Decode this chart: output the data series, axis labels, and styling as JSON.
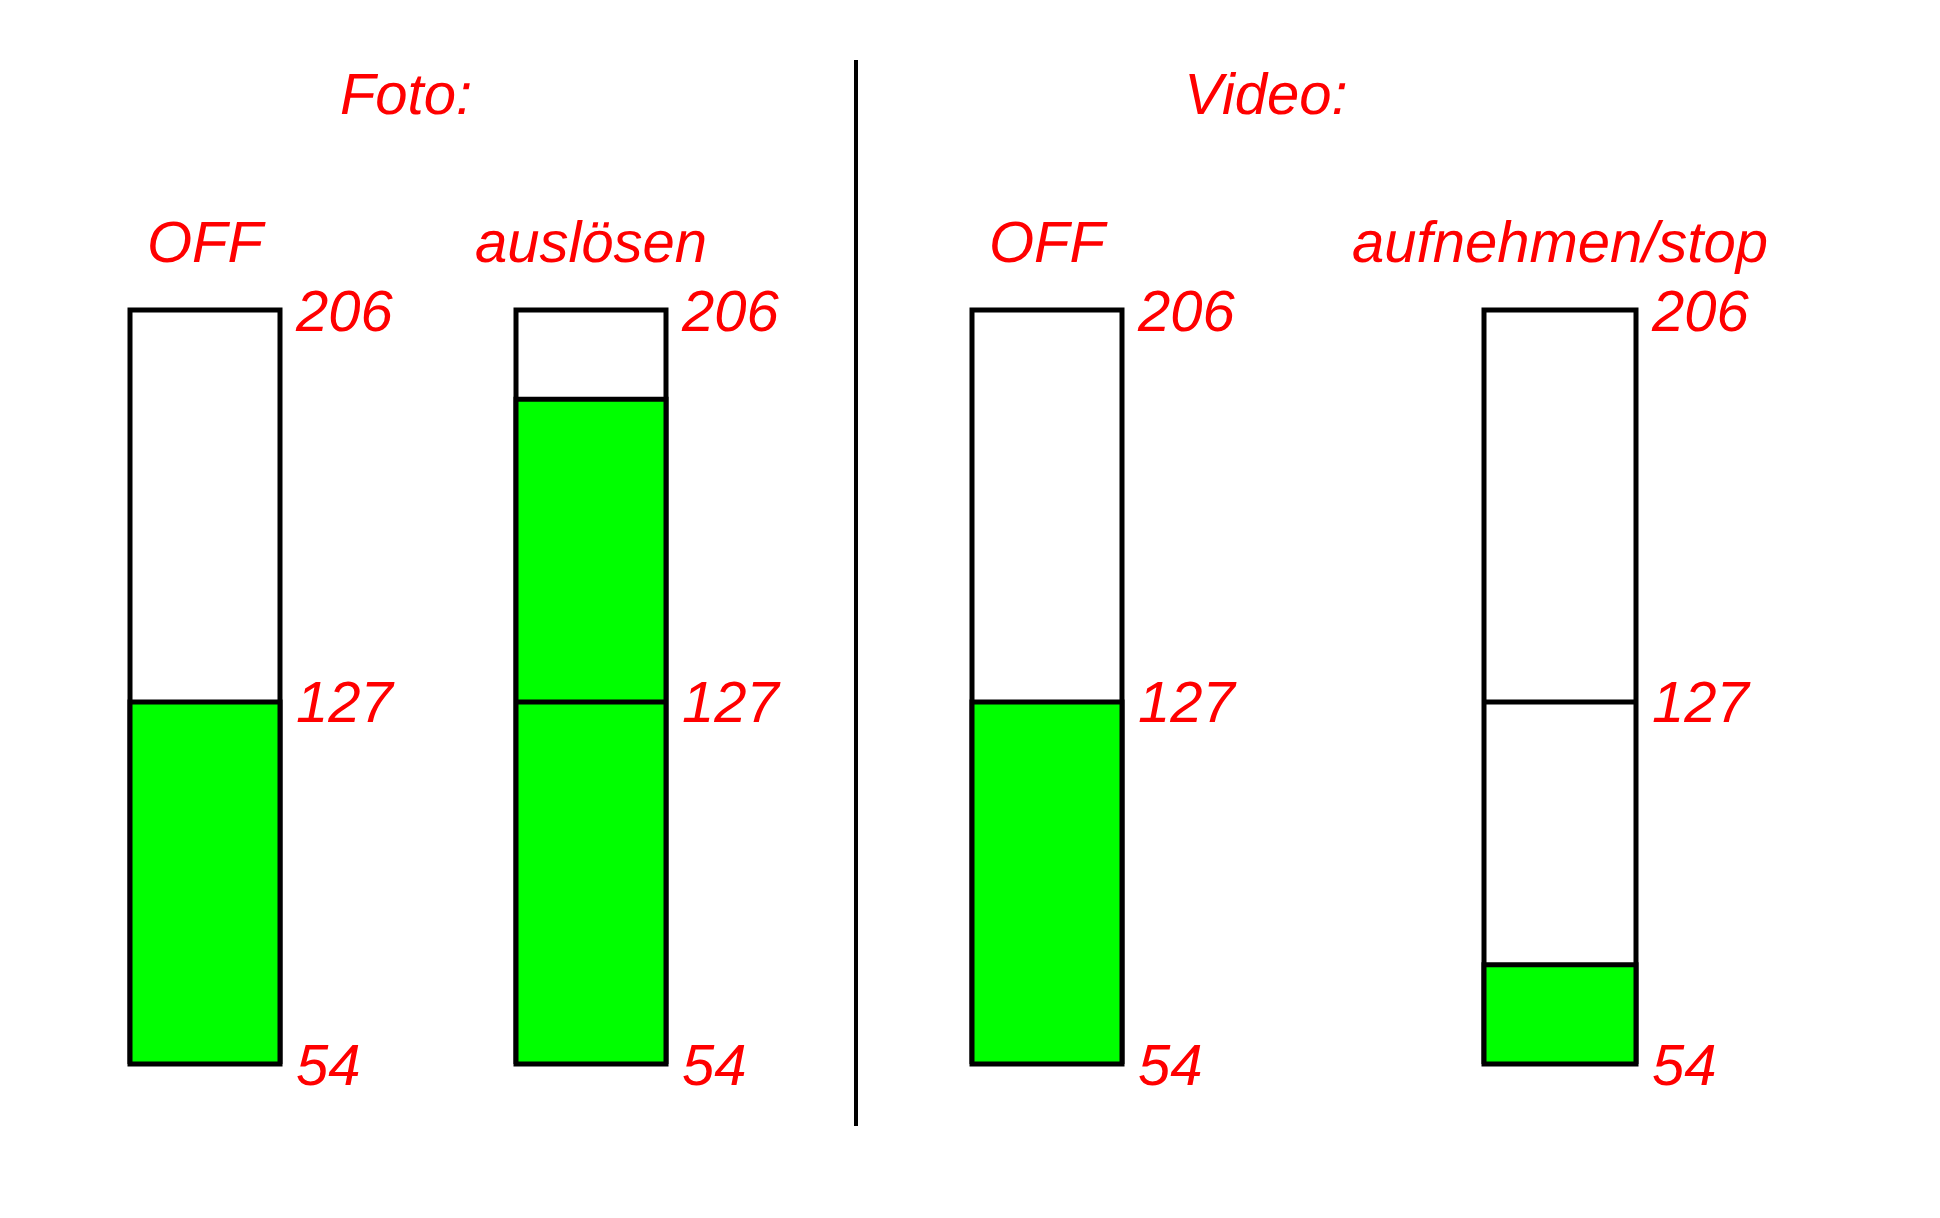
{
  "chart_data": [
    {
      "type": "bar",
      "title": "Foto:",
      "categories": [
        "OFF"
      ],
      "values": [
        127
      ],
      "color": "#00ff00",
      "ylim": [
        54,
        206
      ],
      "yticks": [
        54,
        127,
        206
      ]
    },
    {
      "type": "bar",
      "categories": [
        "auslösen"
      ],
      "values": [
        188
      ],
      "color": "#00ff00",
      "ylim": [
        54,
        206
      ],
      "yticks": [
        54,
        127,
        206
      ],
      "ref_lines": [
        {
          "axis": "y",
          "value": 127,
          "color": "#000000"
        }
      ]
    },
    {
      "type": "bar",
      "title": "Video:",
      "categories": [
        "OFF"
      ],
      "values": [
        127
      ],
      "color": "#00ff00",
      "ylim": [
        54,
        206
      ],
      "yticks": [
        54,
        127,
        206
      ]
    },
    {
      "type": "bar",
      "categories": [
        "aufnehmen/stop"
      ],
      "values": [
        74
      ],
      "color": "#00ff00",
      "ylim": [
        54,
        206
      ],
      "yticks": [
        54,
        127,
        206
      ],
      "ref_lines": [
        {
          "axis": "y",
          "value": 127,
          "color": "#000000"
        }
      ]
    }
  ]
}
